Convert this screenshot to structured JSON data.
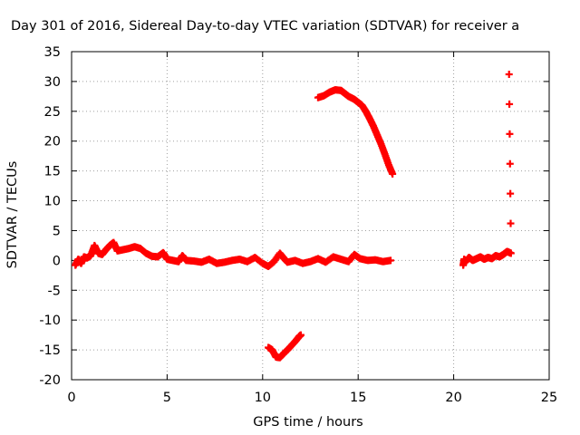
{
  "chart_data": {
    "type": "scatter",
    "title": "Day 301 of 2016, Sidereal Day-to-day VTEC variation (SDTVAR) for receiver a",
    "xlabel": "GPS time / hours",
    "ylabel": "SDTVAR / TECUs",
    "xlim": [
      0,
      25
    ],
    "ylim": [
      -20,
      35
    ],
    "xticks": [
      0,
      5,
      10,
      15,
      20,
      25
    ],
    "yticks": [
      -20,
      -15,
      -10,
      -5,
      0,
      5,
      10,
      15,
      20,
      25,
      30,
      35
    ],
    "grid": true,
    "legend": "none",
    "marker": "+",
    "color": "#ff0000",
    "series": [
      {
        "points": [
          [
            0.2,
            -0.8
          ],
          [
            0.35,
            0.2
          ],
          [
            0.5,
            -0.5
          ],
          [
            0.65,
            0.6
          ],
          [
            0.8,
            0.4
          ],
          [
            1.0,
            0.8
          ],
          [
            1.2,
            2.5
          ],
          [
            1.4,
            1.2
          ],
          [
            1.6,
            1.0
          ],
          [
            1.8,
            1.8
          ],
          [
            2.0,
            2.5
          ],
          [
            2.2,
            3.0
          ],
          [
            2.4,
            1.6
          ],
          [
            2.7,
            1.8
          ],
          [
            3.0,
            2.0
          ],
          [
            3.3,
            2.3
          ],
          [
            3.6,
            2.0
          ],
          [
            3.9,
            1.2
          ],
          [
            4.2,
            0.7
          ],
          [
            4.5,
            0.6
          ],
          [
            4.8,
            1.3
          ],
          [
            5.0,
            0.2
          ],
          [
            5.3,
            0.0
          ],
          [
            5.6,
            -0.2
          ],
          [
            5.8,
            0.8
          ],
          [
            6.0,
            0.0
          ],
          [
            6.4,
            -0.1
          ],
          [
            6.8,
            -0.3
          ],
          [
            7.2,
            0.2
          ],
          [
            7.6,
            -0.5
          ],
          [
            8.0,
            -0.3
          ],
          [
            8.4,
            0.0
          ],
          [
            8.8,
            0.2
          ],
          [
            9.2,
            -0.2
          ],
          [
            9.6,
            0.5
          ],
          [
            10.0,
            -0.5
          ],
          [
            10.3,
            -1.0
          ],
          [
            10.6,
            -0.2
          ],
          [
            10.9,
            1.2
          ],
          [
            11.1,
            0.4
          ],
          [
            11.3,
            -0.3
          ],
          [
            11.7,
            0.0
          ],
          [
            12.1,
            -0.5
          ],
          [
            12.5,
            -0.2
          ],
          [
            12.9,
            0.3
          ],
          [
            13.3,
            -0.3
          ],
          [
            13.7,
            0.6
          ],
          [
            14.1,
            0.2
          ],
          [
            14.5,
            -0.2
          ],
          [
            14.8,
            1.0
          ],
          [
            15.1,
            0.3
          ],
          [
            15.5,
            0.0
          ],
          [
            15.9,
            0.1
          ],
          [
            16.3,
            -0.2
          ],
          [
            16.7,
            0.0
          ]
        ]
      },
      {
        "points": [
          [
            12.9,
            27.3
          ],
          [
            13.2,
            27.6
          ],
          [
            13.5,
            28.2
          ],
          [
            13.8,
            28.6
          ],
          [
            14.1,
            28.5
          ],
          [
            14.3,
            28.0
          ],
          [
            14.5,
            27.5
          ],
          [
            14.8,
            27.0
          ],
          [
            15.0,
            26.5
          ],
          [
            15.2,
            26.0
          ],
          [
            15.4,
            25.0
          ],
          [
            15.6,
            23.8
          ],
          [
            15.8,
            22.5
          ],
          [
            16.0,
            21.0
          ],
          [
            16.2,
            19.5
          ],
          [
            16.4,
            17.8
          ],
          [
            16.6,
            16.0
          ],
          [
            16.8,
            14.5
          ]
        ]
      },
      {
        "points": [
          [
            10.3,
            -14.6
          ],
          [
            10.5,
            -15.0
          ],
          [
            10.7,
            -16.2
          ],
          [
            10.9,
            -16.3
          ],
          [
            11.1,
            -15.6
          ],
          [
            11.3,
            -15.0
          ],
          [
            11.5,
            -14.3
          ],
          [
            11.7,
            -13.6
          ],
          [
            11.9,
            -12.8
          ],
          [
            12.0,
            -12.5
          ]
        ]
      },
      {
        "points": [
          [
            20.5,
            -0.8
          ],
          [
            20.55,
            0.2
          ],
          [
            20.6,
            -0.3
          ],
          [
            20.8,
            0.5
          ],
          [
            21.0,
            0.0
          ],
          [
            21.2,
            0.3
          ],
          [
            21.4,
            0.6
          ],
          [
            21.6,
            0.2
          ],
          [
            21.8,
            0.5
          ],
          [
            22.0,
            0.3
          ],
          [
            22.2,
            0.8
          ],
          [
            22.4,
            0.6
          ],
          [
            22.6,
            1.0
          ],
          [
            22.8,
            1.5
          ],
          [
            23.0,
            1.2
          ],
          [
            22.9,
            31.2
          ]
        ]
      }
    ]
  }
}
